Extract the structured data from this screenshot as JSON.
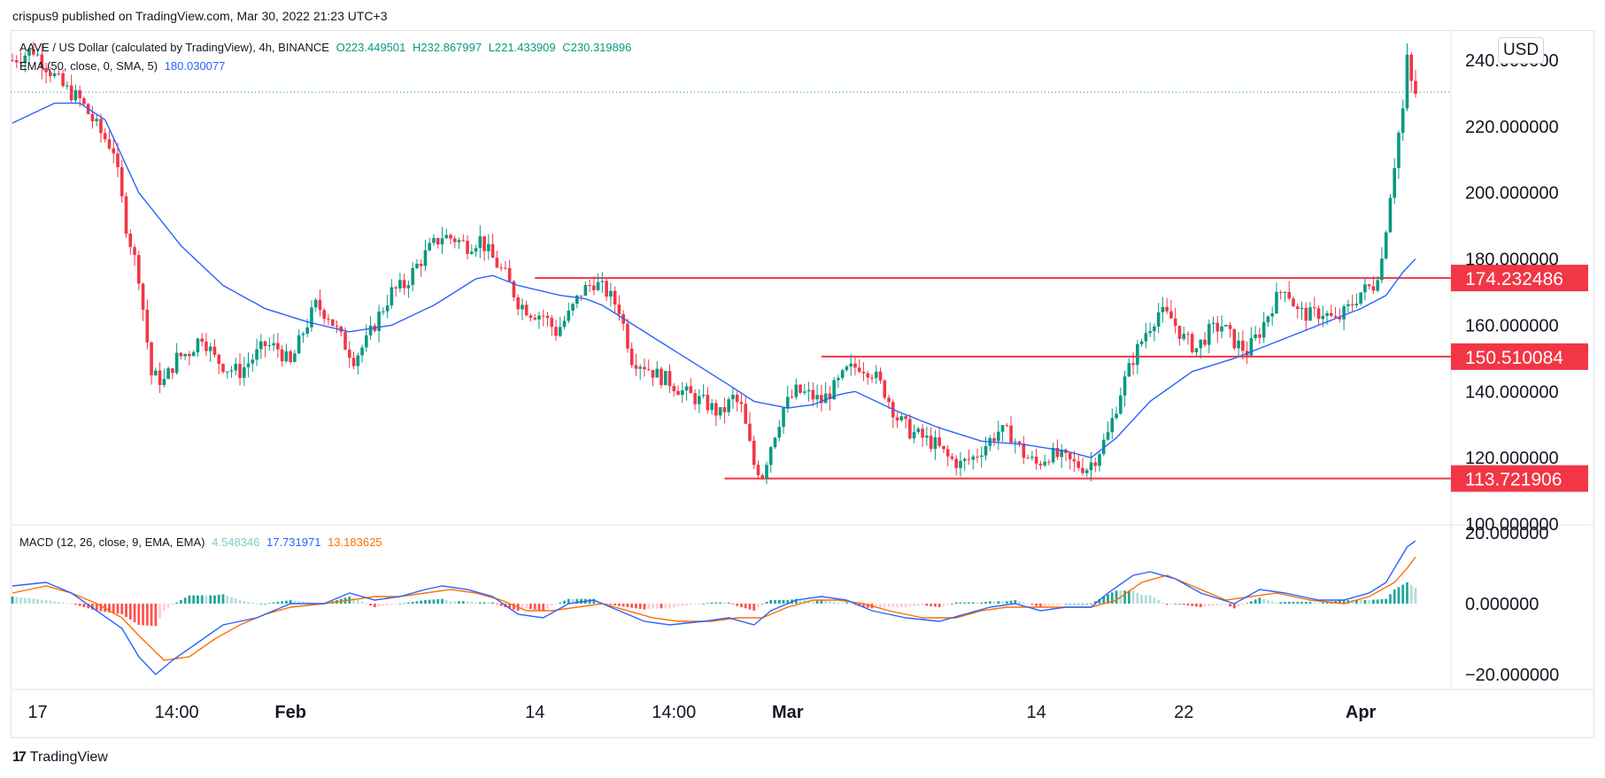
{
  "header": {
    "published_text": "crispus9 published on TradingView.com, Mar 30, 2022 21:23 UTC+3"
  },
  "legend": {
    "symbol": "AAVE / US Dollar (calculated by TradingView), 4h, BINANCE",
    "open": "O223.449501",
    "high": "H232.867997",
    "low": "L221.433909",
    "close": "C230.319896",
    "ema_label": "EMA (50, close, 0, SMA, 5)",
    "ema_value": "180.030077"
  },
  "macd_legend": {
    "label": "MACD (12, 26, close, 9, EMA, EMA)",
    "histogram": "4.548346",
    "macd": "17.731971",
    "signal": "13.183625"
  },
  "currency": "USD",
  "brand": "TradingView",
  "colors": {
    "up": "#089981",
    "down": "#f23645",
    "ema": "#2962ff",
    "signal": "#ff6d00",
    "level": "#f23645"
  },
  "chart_data": [
    {
      "type": "candlestick",
      "series_name": "AAVE / US Dollar",
      "interval": "4h",
      "ylim": [
        100,
        248
      ],
      "y_ticks": [
        "240.000000",
        "220.000000",
        "200.000000",
        "180.000000",
        "160.000000",
        "140.000000",
        "120.000000",
        "100.000000"
      ],
      "y_tick_values": [
        240,
        220,
        200,
        180,
        160,
        140,
        120,
        100
      ],
      "x_tick_labels": [
        "17",
        "14:00",
        "Feb",
        "14",
        "14:00",
        "Mar",
        "14",
        "22",
        "Apr"
      ],
      "x_tick_bold": [
        false,
        false,
        true,
        false,
        false,
        true,
        false,
        false,
        true
      ],
      "x_tick_index": [
        6,
        39,
        66,
        124,
        157,
        184,
        243,
        278,
        320
      ],
      "close_anchor": [
        [
          0,
          240
        ],
        [
          5,
          243
        ],
        [
          12,
          232
        ],
        [
          16,
          228
        ],
        [
          21,
          218
        ],
        [
          24,
          213
        ],
        [
          27,
          190
        ],
        [
          30,
          175
        ],
        [
          33,
          145
        ],
        [
          36,
          143
        ],
        [
          39,
          150
        ],
        [
          42,
          152
        ],
        [
          45,
          157
        ],
        [
          48,
          150
        ],
        [
          51,
          147
        ],
        [
          54,
          146
        ],
        [
          57,
          150
        ],
        [
          60,
          154
        ],
        [
          63,
          153
        ],
        [
          66,
          148
        ],
        [
          69,
          158
        ],
        [
          72,
          166
        ],
        [
          75,
          163
        ],
        [
          78,
          156
        ],
        [
          81,
          150
        ],
        [
          84,
          155
        ],
        [
          87,
          163
        ],
        [
          90,
          170
        ],
        [
          93,
          172
        ],
        [
          96,
          178
        ],
        [
          99,
          183
        ],
        [
          102,
          187
        ],
        [
          105,
          186
        ],
        [
          108,
          184
        ],
        [
          111,
          186
        ],
        [
          114,
          180
        ],
        [
          117,
          175
        ],
        [
          120,
          167
        ],
        [
          123,
          164
        ],
        [
          126,
          163
        ],
        [
          129,
          158
        ],
        [
          132,
          163
        ],
        [
          135,
          170
        ],
        [
          138,
          173
        ],
        [
          141,
          170
        ],
        [
          144,
          165
        ],
        [
          147,
          150
        ],
        [
          150,
          148
        ],
        [
          153,
          145
        ],
        [
          156,
          143
        ],
        [
          159,
          140
        ],
        [
          162,
          138
        ],
        [
          165,
          136
        ],
        [
          168,
          133
        ],
        [
          171,
          138
        ],
        [
          173,
          135
        ],
        [
          176,
          118
        ],
        [
          178,
          115
        ],
        [
          180,
          124
        ],
        [
          183,
          135
        ],
        [
          186,
          140
        ],
        [
          189,
          139
        ],
        [
          192,
          137
        ],
        [
          195,
          141
        ],
        [
          198,
          146
        ],
        [
          201,
          148
        ],
        [
          204,
          146
        ],
        [
          207,
          140
        ],
        [
          210,
          132
        ],
        [
          213,
          128
        ],
        [
          216,
          126
        ],
        [
          219,
          124
        ],
        [
          222,
          120
        ],
        [
          225,
          118
        ],
        [
          228,
          120
        ],
        [
          231,
          124
        ],
        [
          234,
          128
        ],
        [
          237,
          127
        ],
        [
          240,
          121
        ],
        [
          243,
          118
        ],
        [
          246,
          121
        ],
        [
          249,
          120
        ],
        [
          252,
          118
        ],
        [
          255,
          117
        ],
        [
          257,
          120
        ],
        [
          260,
          127
        ],
        [
          263,
          140
        ],
        [
          266,
          150
        ],
        [
          269,
          158
        ],
        [
          272,
          164
        ],
        [
          275,
          162
        ],
        [
          278,
          156
        ],
        [
          281,
          153
        ],
        [
          284,
          158
        ],
        [
          287,
          160
        ],
        [
          290,
          155
        ],
        [
          293,
          152
        ],
        [
          296,
          158
        ],
        [
          299,
          166
        ],
        [
          302,
          172
        ],
        [
          305,
          164
        ],
        [
          308,
          163
        ],
        [
          311,
          164
        ],
        [
          314,
          161
        ],
        [
          317,
          165
        ],
        [
          320,
          170
        ],
        [
          323,
          172
        ],
        [
          325,
          180
        ],
        [
          327,
          200
        ],
        [
          329,
          218
        ],
        [
          330,
          225
        ],
        [
          331,
          240
        ],
        [
          332,
          233
        ],
        [
          333,
          230
        ]
      ],
      "ema50": {
        "name": "EMA (50, close, 0, SMA, 5)",
        "anchor": [
          [
            0,
            221
          ],
          [
            10,
            227
          ],
          [
            16,
            227
          ],
          [
            22,
            222
          ],
          [
            30,
            200
          ],
          [
            40,
            184
          ],
          [
            50,
            172
          ],
          [
            60,
            165
          ],
          [
            70,
            161
          ],
          [
            80,
            158
          ],
          [
            90,
            160
          ],
          [
            100,
            166
          ],
          [
            110,
            174
          ],
          [
            114,
            175
          ],
          [
            120,
            172
          ],
          [
            130,
            169
          ],
          [
            136,
            168
          ],
          [
            140,
            166
          ],
          [
            150,
            158
          ],
          [
            160,
            150
          ],
          [
            170,
            142
          ],
          [
            176,
            137
          ],
          [
            184,
            135
          ],
          [
            190,
            136
          ],
          [
            196,
            139
          ],
          [
            200,
            140
          ],
          [
            210,
            134
          ],
          [
            220,
            129
          ],
          [
            230,
            125
          ],
          [
            240,
            124
          ],
          [
            250,
            122
          ],
          [
            256,
            120
          ],
          [
            262,
            126
          ],
          [
            270,
            137
          ],
          [
            280,
            146
          ],
          [
            290,
            150
          ],
          [
            300,
            155
          ],
          [
            310,
            160
          ],
          [
            320,
            165
          ],
          [
            326,
            169
          ],
          [
            330,
            176
          ],
          [
            333,
            180
          ]
        ]
      },
      "horizontal_levels": [
        {
          "value": 174.232486,
          "label": "174.232486",
          "start_index": 124
        },
        {
          "value": 150.510084,
          "label": "150.510084",
          "start_index": 192
        },
        {
          "value": 113.721906,
          "label": "113.721906",
          "start_index": 169
        }
      ],
      "last_price": 230.319896
    },
    {
      "type": "macd",
      "name": "MACD (12, 26, close, 9, EMA, EMA)",
      "ylim": [
        -24,
        22
      ],
      "y_ticks": [
        "20.000000",
        "0.000000",
        "−20.000000"
      ],
      "y_tick_values": [
        20,
        0,
        -20
      ],
      "macd_anchor": [
        [
          0,
          5
        ],
        [
          8,
          6
        ],
        [
          14,
          3
        ],
        [
          20,
          -2
        ],
        [
          26,
          -7
        ],
        [
          30,
          -15
        ],
        [
          34,
          -20
        ],
        [
          38,
          -16
        ],
        [
          44,
          -11
        ],
        [
          50,
          -6
        ],
        [
          58,
          -4
        ],
        [
          66,
          0
        ],
        [
          74,
          0
        ],
        [
          80,
          3
        ],
        [
          86,
          1
        ],
        [
          92,
          2
        ],
        [
          98,
          4
        ],
        [
          102,
          5
        ],
        [
          108,
          4
        ],
        [
          114,
          2
        ],
        [
          120,
          -3
        ],
        [
          126,
          -4
        ],
        [
          132,
          0
        ],
        [
          138,
          1
        ],
        [
          144,
          -2
        ],
        [
          150,
          -5
        ],
        [
          156,
          -6
        ],
        [
          164,
          -5
        ],
        [
          170,
          -4
        ],
        [
          176,
          -6
        ],
        [
          180,
          -2
        ],
        [
          186,
          1
        ],
        [
          192,
          2
        ],
        [
          198,
          1
        ],
        [
          204,
          -2
        ],
        [
          212,
          -4
        ],
        [
          220,
          -5
        ],
        [
          226,
          -3
        ],
        [
          232,
          -1
        ],
        [
          238,
          0
        ],
        [
          244,
          -2
        ],
        [
          250,
          -1
        ],
        [
          256,
          -1
        ],
        [
          260,
          3
        ],
        [
          266,
          8
        ],
        [
          270,
          9
        ],
        [
          276,
          7
        ],
        [
          282,
          3
        ],
        [
          290,
          0
        ],
        [
          296,
          4
        ],
        [
          302,
          3
        ],
        [
          310,
          1
        ],
        [
          316,
          1
        ],
        [
          322,
          3
        ],
        [
          326,
          6
        ],
        [
          329,
          12
        ],
        [
          331,
          16
        ],
        [
          333,
          17.73
        ]
      ],
      "signal_anchor": [
        [
          0,
          3
        ],
        [
          8,
          5
        ],
        [
          14,
          3
        ],
        [
          20,
          0
        ],
        [
          26,
          -4
        ],
        [
          30,
          -9
        ],
        [
          36,
          -16
        ],
        [
          42,
          -15
        ],
        [
          48,
          -10
        ],
        [
          54,
          -6
        ],
        [
          60,
          -3
        ],
        [
          66,
          -1
        ],
        [
          74,
          0
        ],
        [
          80,
          1
        ],
        [
          86,
          2
        ],
        [
          92,
          2
        ],
        [
          98,
          3
        ],
        [
          104,
          4
        ],
        [
          110,
          3
        ],
        [
          116,
          1
        ],
        [
          122,
          -2
        ],
        [
          128,
          -2
        ],
        [
          134,
          -1
        ],
        [
          140,
          0
        ],
        [
          146,
          -2
        ],
        [
          152,
          -4
        ],
        [
          158,
          -5
        ],
        [
          166,
          -5
        ],
        [
          172,
          -4
        ],
        [
          178,
          -4
        ],
        [
          184,
          -1
        ],
        [
          190,
          1
        ],
        [
          196,
          1
        ],
        [
          202,
          0
        ],
        [
          208,
          -2
        ],
        [
          216,
          -4
        ],
        [
          224,
          -4
        ],
        [
          230,
          -2
        ],
        [
          236,
          -1
        ],
        [
          242,
          -1
        ],
        [
          248,
          -1
        ],
        [
          256,
          -1
        ],
        [
          262,
          1
        ],
        [
          268,
          6
        ],
        [
          274,
          8
        ],
        [
          280,
          5
        ],
        [
          288,
          1
        ],
        [
          294,
          2
        ],
        [
          300,
          3
        ],
        [
          308,
          1
        ],
        [
          316,
          0
        ],
        [
          322,
          2
        ],
        [
          328,
          6
        ],
        [
          331,
          10
        ],
        [
          333,
          13.18
        ]
      ],
      "last_histogram": 4.548346
    }
  ]
}
